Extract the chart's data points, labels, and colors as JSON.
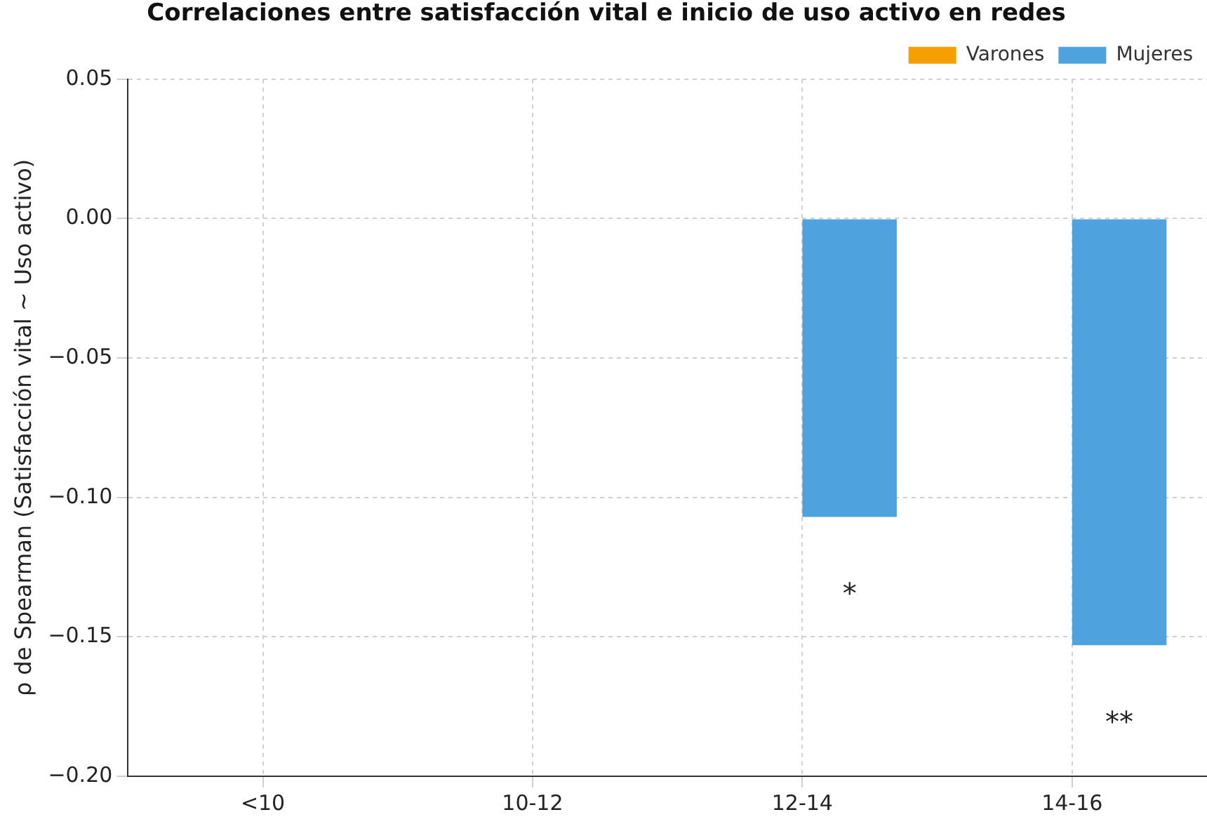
{
  "chart_data": {
    "type": "bar",
    "title": "Correlaciones entre satisfacción vital e inicio de uso activo en redes",
    "ylabel": "ρ de Spearman (Satisfacción vital ~ Uso activo)",
    "categories": [
      "<10",
      "10-12",
      "12-14",
      "14-16"
    ],
    "series": [
      {
        "name": "Varones",
        "color": "#f5a000",
        "values": [
          null,
          null,
          null,
          null
        ]
      },
      {
        "name": "Mujeres",
        "color": "#4ea3de",
        "values": [
          null,
          null,
          -0.107,
          -0.153
        ]
      }
    ],
    "ylim": [
      -0.2,
      0.05
    ],
    "yticks": [
      {
        "value": -0.2,
        "label": "−0.20"
      },
      {
        "value": -0.15,
        "label": "−0.15"
      },
      {
        "value": -0.1,
        "label": "−0.10"
      },
      {
        "value": -0.05,
        "label": "−0.05"
      },
      {
        "value": 0,
        "label": "0.00"
      },
      0.05
    ],
    "grid": true,
    "legend": "top right",
    "annotations": [
      "*",
      "**"
    ]
  }
}
